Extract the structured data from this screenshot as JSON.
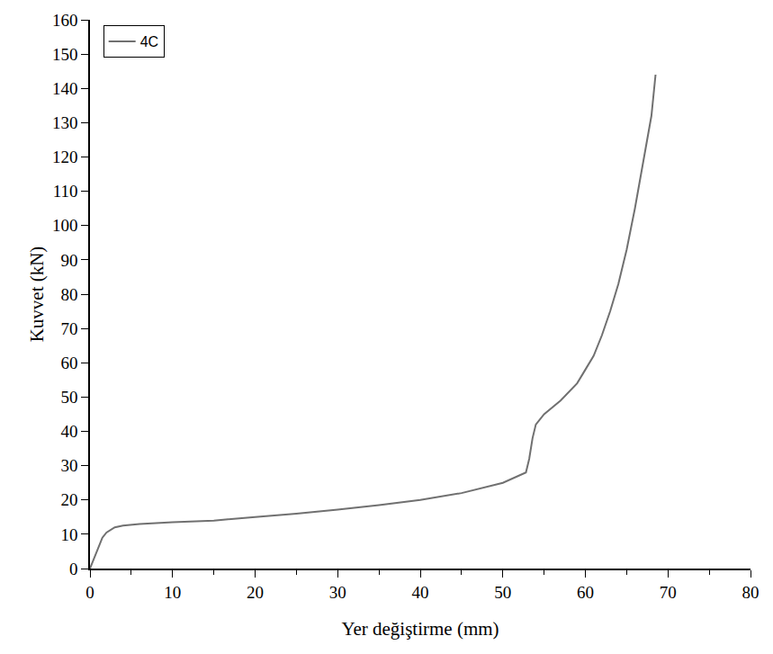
{
  "chart_data": {
    "type": "line",
    "x_label": "Yer değiştirme (mm)",
    "y_label": "Kuvvet (kN)",
    "legend": "top-left",
    "grid": false,
    "xlim": [
      0,
      80
    ],
    "ylim": [
      0,
      160
    ],
    "xticks": [
      0,
      10,
      20,
      30,
      40,
      50,
      60,
      70,
      80
    ],
    "yticks": [
      0,
      10,
      20,
      30,
      40,
      50,
      60,
      70,
      80,
      90,
      100,
      110,
      120,
      130,
      140,
      150,
      160
    ],
    "series": [
      {
        "name": "4C",
        "color": "#707070",
        "line_style": "solid",
        "x": [
          0,
          0.5,
          1,
          1.5,
          2,
          3,
          4,
          6,
          10,
          15,
          20,
          25,
          30,
          35,
          40,
          45,
          50,
          52,
          52.8,
          53.2,
          53.6,
          54,
          55,
          57,
          59,
          60,
          61,
          62,
          63,
          64,
          65,
          66,
          67,
          68,
          68.5
        ],
        "values": [
          0,
          3,
          6,
          9,
          10.5,
          12,
          12.5,
          13,
          13.5,
          14,
          15,
          16,
          17.2,
          18.5,
          20,
          22,
          25,
          27,
          28,
          32,
          38,
          42,
          45,
          49,
          54,
          58,
          62,
          68,
          75,
          83,
          93,
          105,
          118,
          132,
          144
        ]
      }
    ]
  }
}
